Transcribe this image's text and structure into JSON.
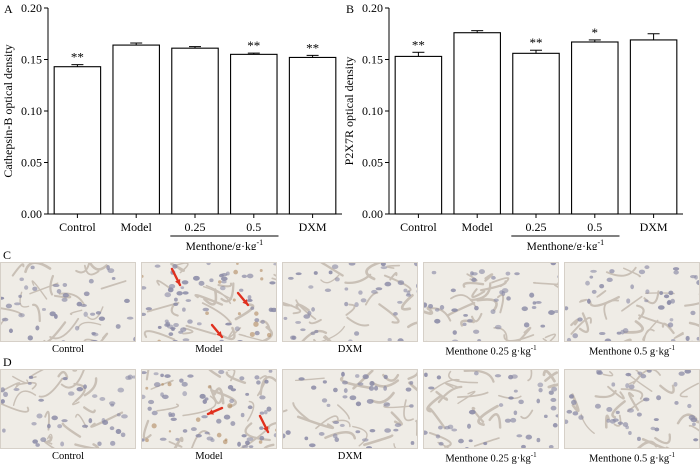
{
  "chart_data": [
    {
      "type": "bar",
      "panel": "A",
      "categories": [
        "Control",
        "Model",
        "0.25",
        "0.5",
        "DXM"
      ],
      "values": [
        0.143,
        0.164,
        0.161,
        0.155,
        0.152
      ],
      "errors": [
        0.002,
        0.002,
        0.0015,
        0.0012,
        0.002
      ],
      "annotations": [
        "**",
        "",
        "",
        "**",
        "**"
      ],
      "ylabel": "Cathepsin-B optical density",
      "group_label": "Menthone/g·kg",
      "group_label_sup": "-1",
      "ylim": [
        0,
        0.2
      ],
      "yticks": [
        "0.00",
        "0.05",
        "0.10",
        "0.15",
        "0.20"
      ],
      "grid": false
    },
    {
      "type": "bar",
      "panel": "B",
      "categories": [
        "Control",
        "Model",
        "0.25",
        "0.5",
        "DXM"
      ],
      "values": [
        0.153,
        0.176,
        0.156,
        0.167,
        0.169
      ],
      "errors": [
        0.004,
        0.002,
        0.003,
        0.002,
        0.006
      ],
      "annotations": [
        "**",
        "",
        "**",
        "*",
        ""
      ],
      "ylabel": "P2X7R optical density",
      "group_label": "Menthone/g·kg",
      "group_label_sup": "-1",
      "ylim": [
        0,
        0.2
      ],
      "yticks": [
        "0.00",
        "0.05",
        "0.10",
        "0.15",
        "0.20"
      ],
      "grid": false
    }
  ],
  "micrographs": {
    "row_c": {
      "label": "C",
      "captions": [
        "Control",
        "Model",
        "DXM",
        "Menthone 0.25 g·kg",
        "Menthone 0.5 g·kg"
      ],
      "caption_sup": [
        "",
        "",
        "",
        "-1",
        "-1"
      ],
      "red_arrows": [
        0,
        3,
        0,
        0,
        0
      ]
    },
    "row_d": {
      "label": "D",
      "captions": [
        "Control",
        "Model",
        "DXM",
        "Menthone 0.25 g·kg",
        "Menthone 0.5 g·kg"
      ],
      "caption_sup": [
        "",
        "",
        "",
        "-1",
        "-1"
      ],
      "red_arrows": [
        0,
        2,
        0,
        0,
        0
      ]
    }
  },
  "colors": {
    "bar_fill": "#ffffff",
    "bar_stroke": "#000000",
    "tissue_bg": "#efece6",
    "nucleus": "#8a8aa6",
    "arrow": "#e0301e"
  }
}
